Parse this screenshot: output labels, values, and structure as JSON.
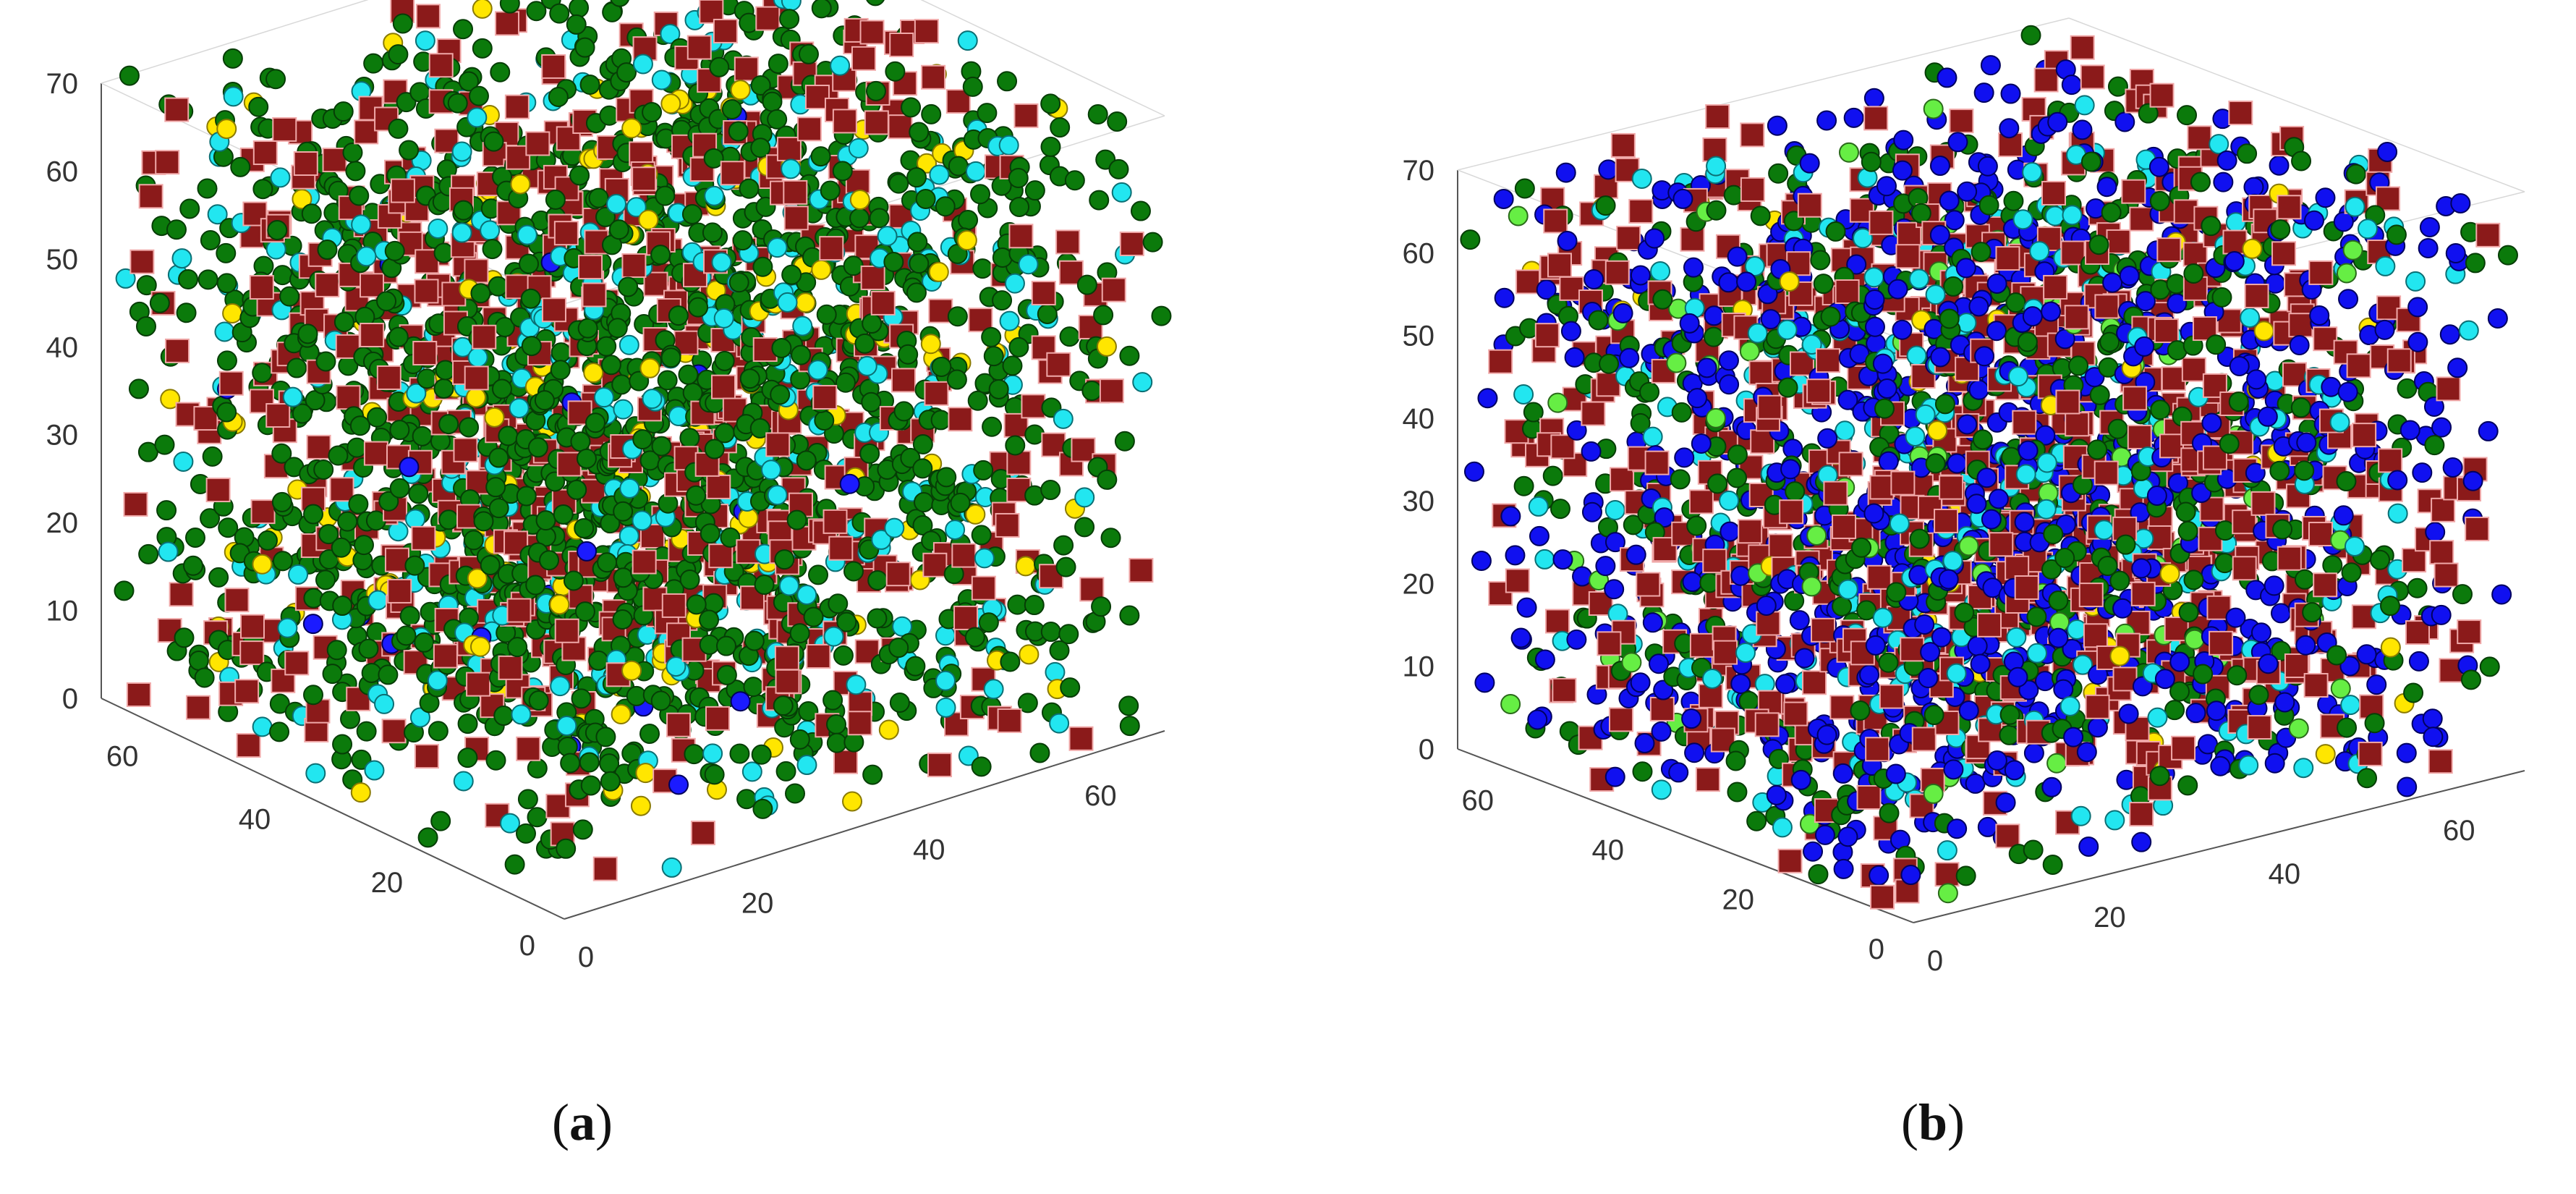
{
  "chart_data": [
    {
      "panel": "a",
      "caption_letter": "a",
      "type": "scatter3d",
      "x_ticks": [
        "0",
        "20",
        "40",
        "60"
      ],
      "y_ticks": [
        "0",
        "20",
        "40",
        "60"
      ],
      "z_ticks": [
        "0",
        "10",
        "20",
        "30",
        "40",
        "50",
        "60",
        "70"
      ],
      "xlim": [
        0,
        70
      ],
      "ylim": [
        0,
        70
      ],
      "zlim": [
        0,
        70
      ],
      "grid": false,
      "series": [
        {
          "marker": "square",
          "color": "#8b1a1a",
          "edge": "#5a0c0c",
          "count": 700,
          "seed": 11
        },
        {
          "marker": "circle",
          "color": "#0b7a0b",
          "edge": "#063d06",
          "count": 1700,
          "seed": 23
        },
        {
          "marker": "circle",
          "color": "#22e6f0",
          "edge": "#0b6f74",
          "count": 420,
          "seed": 37
        },
        {
          "marker": "circle",
          "color": "#ffe600",
          "edge": "#8a7a00",
          "count": 170,
          "seed": 41
        },
        {
          "marker": "circle",
          "color": "#1b1bff",
          "edge": "#00005a",
          "count": 20,
          "seed": 53
        }
      ]
    },
    {
      "panel": "b",
      "caption_letter": "b",
      "type": "scatter3d",
      "x_ticks": [
        "0",
        "20",
        "40",
        "60"
      ],
      "y_ticks": [
        "0",
        "20",
        "40",
        "60"
      ],
      "z_ticks": [
        "0",
        "10",
        "20",
        "30",
        "40",
        "50",
        "60",
        "70"
      ],
      "xlim": [
        0,
        70
      ],
      "ylim": [
        0,
        70
      ],
      "zlim": [
        0,
        70
      ],
      "grid": false,
      "series": [
        {
          "marker": "square",
          "color": "#8b1a1a",
          "edge": "#5a0c0c",
          "count": 800,
          "seed": 61
        },
        {
          "marker": "circle",
          "color": "#1010f0",
          "edge": "#000060",
          "count": 1000,
          "seed": 67
        },
        {
          "marker": "circle",
          "color": "#0b7a0b",
          "edge": "#063d06",
          "count": 650,
          "seed": 71
        },
        {
          "marker": "circle",
          "color": "#22e6f0",
          "edge": "#0b6f74",
          "count": 300,
          "seed": 79
        },
        {
          "marker": "circle",
          "color": "#66ee44",
          "edge": "#2a6a1a",
          "count": 90,
          "seed": 83
        },
        {
          "marker": "circle",
          "color": "#ffe600",
          "edge": "#8a7a00",
          "count": 50,
          "seed": 89
        }
      ]
    }
  ]
}
